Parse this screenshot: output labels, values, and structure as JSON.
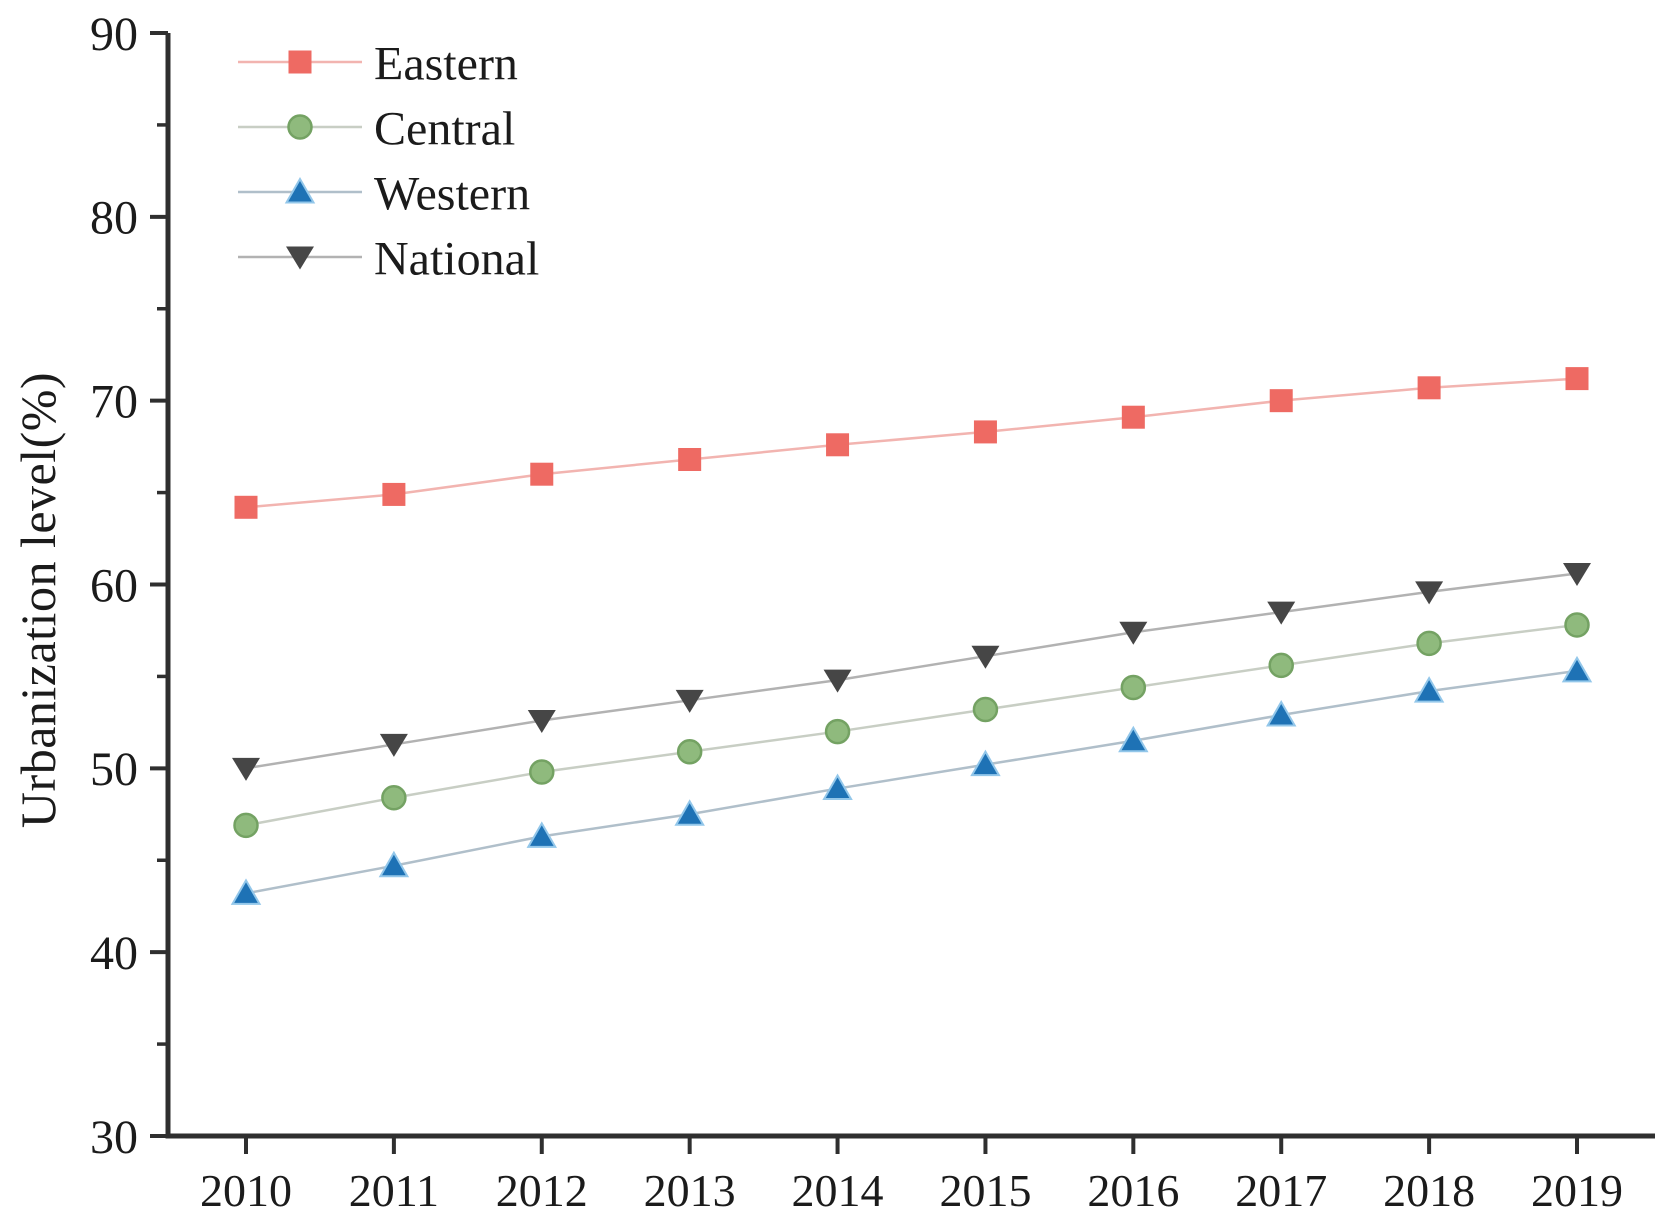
{
  "chart_data": {
    "type": "line",
    "title": "",
    "xlabel": "",
    "ylabel": "Urbanization level(%)",
    "x": [
      "2010",
      "2011",
      "2012",
      "2013",
      "2014",
      "2015",
      "2016",
      "2017",
      "2018",
      "2019"
    ],
    "ylim": [
      30,
      90
    ],
    "y_major_ticks": [
      30,
      40,
      50,
      60,
      70,
      80,
      90
    ],
    "y_minor_ticks": [
      35,
      45,
      55,
      65,
      75,
      85
    ],
    "grid": false,
    "legend_position": "top-left-inside",
    "axis_color": "#2f2f2f",
    "text_color": "#1b1b1b",
    "series": [
      {
        "name": "Eastern",
        "marker": "square",
        "marker_color": "#ee6a63",
        "marker_edge": "none",
        "line_color": "#f2b4b0",
        "values": [
          64.2,
          64.9,
          66.0,
          66.8,
          67.6,
          68.3,
          69.1,
          70.0,
          70.7,
          71.2
        ]
      },
      {
        "name": "Central",
        "marker": "circle",
        "marker_color": "#8fba7d",
        "marker_edge": "#74a263",
        "line_color": "#c8cec4",
        "values": [
          46.9,
          48.4,
          49.8,
          50.9,
          52.0,
          53.2,
          54.4,
          55.6,
          56.8,
          57.8
        ]
      },
      {
        "name": "Western",
        "marker": "triangle-up",
        "marker_color": "#1e72b5",
        "marker_edge": "#93c7ea",
        "line_color": "#b0bfca",
        "values": [
          43.2,
          44.7,
          46.3,
          47.5,
          48.9,
          50.2,
          51.5,
          52.9,
          54.2,
          55.3
        ]
      },
      {
        "name": "National",
        "marker": "triangle-down",
        "marker_color": "#464646",
        "marker_edge": "none",
        "line_color": "#b2b2b2",
        "values": [
          50.0,
          51.3,
          52.6,
          53.7,
          54.8,
          56.1,
          57.4,
          58.5,
          59.6,
          60.6
        ]
      }
    ]
  }
}
